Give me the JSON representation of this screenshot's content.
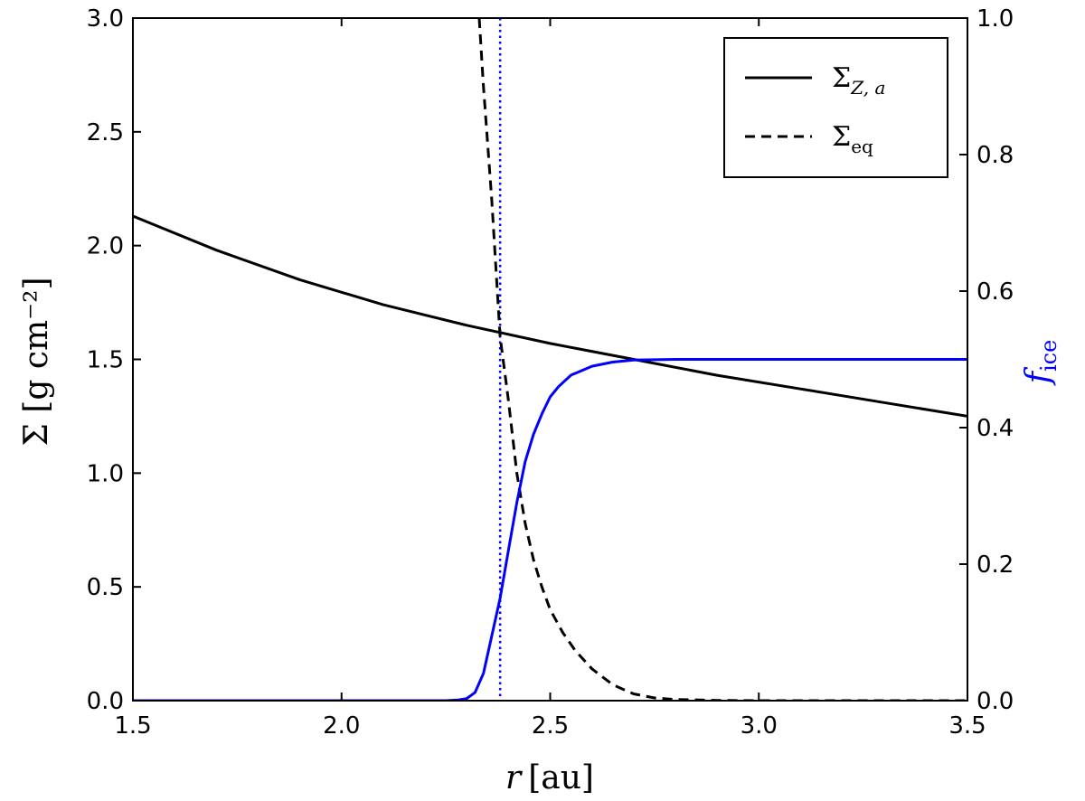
{
  "chart_data": {
    "type": "line",
    "x_axis": {
      "label_var": "r",
      "label_unit": "[au]",
      "lim": [
        1.5,
        3.5
      ],
      "ticks": [
        1.5,
        2.0,
        2.5,
        3.0,
        3.5
      ],
      "tick_labels": [
        "1.5",
        "2.0",
        "2.5",
        "3.0",
        "3.5"
      ]
    },
    "y_axis_left": {
      "label": "Σ [g cm⁻²]",
      "lim": [
        0.0,
        3.0
      ],
      "ticks": [
        0.0,
        0.5,
        1.0,
        1.5,
        2.0,
        2.5,
        3.0
      ],
      "tick_labels": [
        "0.0",
        "0.5",
        "1.0",
        "1.5",
        "2.0",
        "2.5",
        "3.0"
      ]
    },
    "y_axis_right": {
      "label_main": "f",
      "label_sub": "ice",
      "color": "#0000ff",
      "lim": [
        0.0,
        1.0
      ],
      "ticks": [
        0.0,
        0.2,
        0.4,
        0.6,
        0.8,
        1.0
      ],
      "tick_labels": [
        "0.0",
        "0.2",
        "0.4",
        "0.6",
        "0.8",
        "1.0"
      ]
    },
    "legend": {
      "placement": "upper-right",
      "entries": [
        {
          "series": "sigma_Z_a",
          "label_main": "Σ",
          "label_sub": "Z, a",
          "style": "solid"
        },
        {
          "series": "sigma_eq",
          "label_main": "Σ",
          "label_sub": "eq",
          "style": "dashed"
        }
      ]
    },
    "series": [
      {
        "id": "sigma_Z_a",
        "axis": "left",
        "color": "#000000",
        "style": "solid",
        "x": [
          1.5,
          1.7,
          1.9,
          2.1,
          2.3,
          2.5,
          2.7,
          2.9,
          3.1,
          3.3,
          3.5
        ],
        "y": [
          2.13,
          1.98,
          1.85,
          1.74,
          1.65,
          1.57,
          1.5,
          1.43,
          1.37,
          1.31,
          1.25
        ]
      },
      {
        "id": "sigma_eq",
        "axis": "left",
        "color": "#000000",
        "style": "dashed",
        "x": [
          2.33,
          2.34,
          2.35,
          2.36,
          2.38,
          2.4,
          2.42,
          2.44,
          2.46,
          2.48,
          2.5,
          2.53,
          2.56,
          2.6,
          2.65,
          2.7,
          2.75,
          2.8,
          2.9,
          3.0,
          3.5
        ],
        "y": [
          3.0,
          2.7,
          2.45,
          2.2,
          1.6,
          1.32,
          1.0,
          0.78,
          0.62,
          0.5,
          0.4,
          0.3,
          0.22,
          0.14,
          0.07,
          0.03,
          0.012,
          0.005,
          0.001,
          0.0,
          0.0
        ]
      },
      {
        "id": "f_ice",
        "axis": "right",
        "color": "#0000ff",
        "style": "solid",
        "x": [
          1.5,
          2.25,
          2.28,
          2.3,
          2.32,
          2.34,
          2.36,
          2.38,
          2.4,
          2.42,
          2.44,
          2.46,
          2.48,
          2.5,
          2.52,
          2.55,
          2.6,
          2.65,
          2.7,
          2.8,
          3.0,
          3.5
        ],
        "y": [
          0.0,
          0.0,
          0.001,
          0.003,
          0.012,
          0.04,
          0.095,
          0.15,
          0.22,
          0.29,
          0.35,
          0.39,
          0.42,
          0.445,
          0.46,
          0.477,
          0.49,
          0.496,
          0.499,
          0.5,
          0.5,
          0.5
        ]
      }
    ],
    "reference_lines": [
      {
        "orientation": "vertical",
        "x": 2.38,
        "color": "#0000ff",
        "style": "dotted"
      }
    ]
  }
}
